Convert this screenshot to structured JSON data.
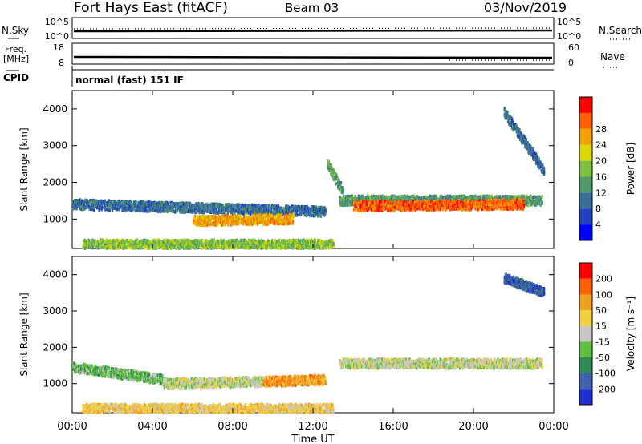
{
  "header": {
    "station": "Fort Hays East (fitACF)",
    "beam": "Beam 03",
    "date": "03/Nov/2019"
  },
  "params": {
    "nsky_label": "N.Sky",
    "nsearch_label": "N.Search",
    "freq_label": "Freq.",
    "freq_unit": "[MHz]",
    "nave_label": "Nave",
    "cpid_label": "CPID",
    "noise_ticks": [
      "10^5",
      "10^0"
    ],
    "freq_ticks": [
      "18",
      "8"
    ],
    "nave_ticks": [
      "60",
      "0"
    ],
    "cpid_text": "normal (fast) 151 IF"
  },
  "chart_data": [
    {
      "type": "heatmap",
      "name": "power",
      "ylabel": "Slant Range [km]",
      "yticks": [
        "1000",
        "2000",
        "3000",
        "4000"
      ],
      "ylim": [
        200,
        4500
      ],
      "colorbar_label": "Power [dB]",
      "colorbar_ticks": [
        "4",
        "8",
        "12",
        "16",
        "20",
        "24",
        "28"
      ],
      "colors": [
        "#0000ff",
        "#2040c0",
        "#3a6e9a",
        "#4f9a6a",
        "#7cc040",
        "#d8d800",
        "#f0a000",
        "#ff6000",
        "#ff0000"
      ],
      "regions": [
        {
          "t0": 0.0,
          "t1": 12.6,
          "r_start": 1400,
          "r_end": 1200,
          "level": 2
        },
        {
          "t0": 6.0,
          "t1": 11.0,
          "r_start": 950,
          "r_end": 1000,
          "level": 6
        },
        {
          "t0": 0.5,
          "t1": 13.0,
          "r_start": 300,
          "r_end": 300,
          "level": 4
        },
        {
          "t0": 13.3,
          "t1": 23.4,
          "r_start": 1500,
          "r_end": 1500,
          "level": 3
        },
        {
          "t0": 14.0,
          "t1": 22.5,
          "r_start": 1350,
          "r_end": 1400,
          "level": 7
        },
        {
          "t0": 12.7,
          "t1": 13.5,
          "r_start": 2500,
          "r_end": 1700,
          "level": 3
        },
        {
          "t0": 21.5,
          "t1": 23.5,
          "r_start": 3900,
          "r_end": 2300,
          "level": 2
        }
      ]
    },
    {
      "type": "heatmap",
      "name": "velocity",
      "ylabel": "Slant Range [km]",
      "yticks": [
        "1000",
        "2000",
        "3000",
        "4000"
      ],
      "ylim": [
        200,
        4500
      ],
      "colorbar_label": "Velocity [m s⁻¹]",
      "colorbar_ticks": [
        "200",
        "100",
        "50",
        "15",
        "-15",
        "-50",
        "-100",
        "-200"
      ],
      "colors": [
        "#2030d0",
        "#4060b0",
        "#2e8b57",
        "#5fc040",
        "#c8c8c0",
        "#f0d040",
        "#f0a020",
        "#ff6000",
        "#ff0000"
      ],
      "regions": [
        {
          "t0": 0.0,
          "t1": 4.5,
          "r_start": 1450,
          "r_end": 1100,
          "level": 3
        },
        {
          "t0": 4.5,
          "t1": 9.5,
          "r_start": 1000,
          "r_end": 1050,
          "level": 4
        },
        {
          "t0": 9.5,
          "t1": 12.6,
          "r_start": 1050,
          "r_end": 1100,
          "level": 6
        },
        {
          "t0": 0.5,
          "t1": 13.0,
          "r_start": 300,
          "r_end": 300,
          "level": 5
        },
        {
          "t0": 13.3,
          "t1": 23.4,
          "r_start": 1550,
          "r_end": 1550,
          "level": 4
        },
        {
          "t0": 21.5,
          "t1": 23.5,
          "r_start": 3900,
          "r_end": 3500,
          "level": 1
        }
      ]
    }
  ],
  "time_axis": {
    "xlabel": "Time UT",
    "ticks": [
      "00:00",
      "04:00",
      "08:00",
      "12:00",
      "16:00",
      "20:00",
      "00:00"
    ]
  }
}
